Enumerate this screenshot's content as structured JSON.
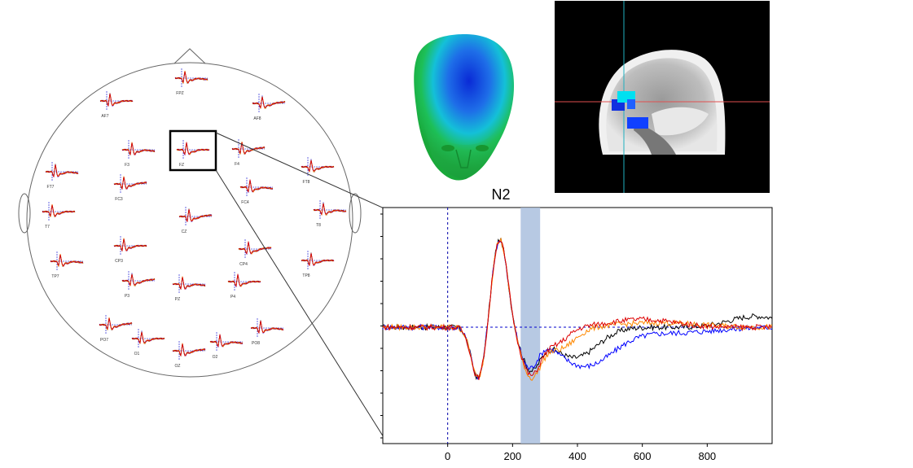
{
  "figure": {
    "component_label": "N2",
    "x_axis": {
      "min": -200,
      "max": 1000,
      "ticks": [
        0,
        200,
        400,
        600,
        800
      ]
    },
    "highlight_window_ms": [
      225,
      285
    ],
    "series": [
      {
        "name": "",
        "color": "#000000"
      },
      {
        "name": "",
        "color": "#0000ff"
      },
      {
        "name": "",
        "color": "#ff8800"
      },
      {
        "name": "",
        "color": "#dd0000"
      }
    ],
    "baseline_color": "#0000cc",
    "selected_electrode": "FZ"
  },
  "electrodes": [
    {
      "label": "FPZ"
    },
    {
      "label": "AF7"
    },
    {
      "label": "AF8"
    },
    {
      "label": "F3"
    },
    {
      "label": "FZ"
    },
    {
      "label": "F4"
    },
    {
      "label": "FT7"
    },
    {
      "label": "FT8"
    },
    {
      "label": "FC3"
    },
    {
      "label": "FC4"
    },
    {
      "label": "T7"
    },
    {
      "label": "CZ"
    },
    {
      "label": "T8"
    },
    {
      "label": "CP3"
    },
    {
      "label": "CP4"
    },
    {
      "label": "TP7"
    },
    {
      "label": "TP8"
    },
    {
      "label": "P3"
    },
    {
      "label": "PZ"
    },
    {
      "label": "P4"
    },
    {
      "label": "PO7"
    },
    {
      "label": "PO8"
    },
    {
      "label": "O1"
    },
    {
      "label": "OZ"
    },
    {
      "label": "O2"
    }
  ]
}
